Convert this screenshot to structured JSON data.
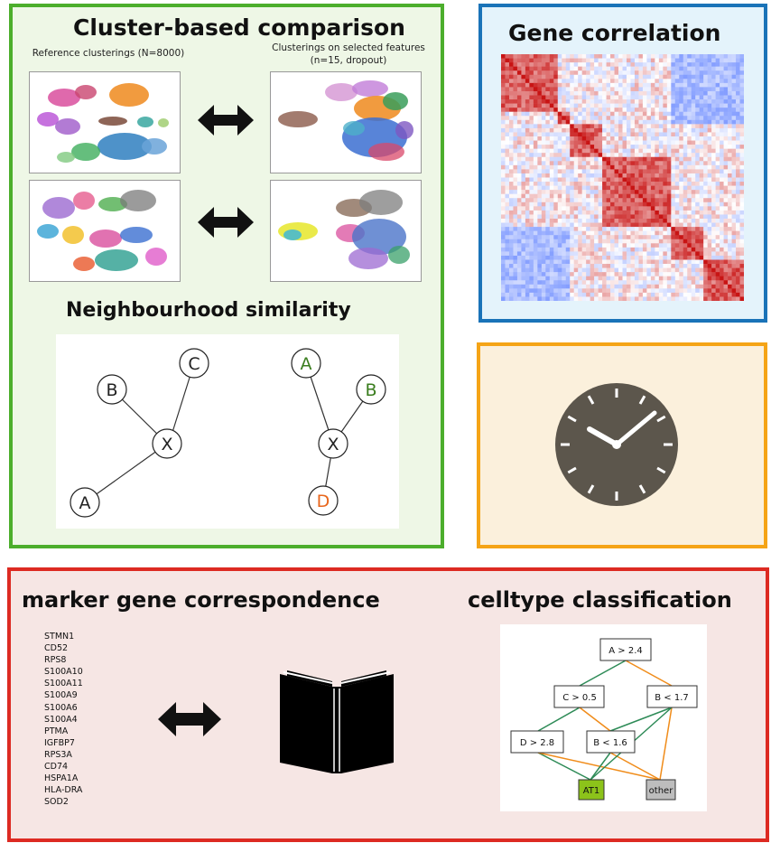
{
  "cluster_panel": {
    "title": "Cluster-based comparison",
    "reference_label": "Reference clusterings (N=8000)",
    "selected_label_line1": "Clusterings on selected features",
    "selected_label_line2": "(n=15, dropout)"
  },
  "neighbourhood": {
    "title": "Neighbourhood similarity",
    "left_graph": {
      "nodes": [
        "B",
        "C",
        "X",
        "A"
      ]
    },
    "right_graph": {
      "nodes": [
        "A",
        "B",
        "X",
        "D"
      ]
    },
    "colors": {
      "edge": "#333333",
      "green": "#3a7d1e",
      "orange": "#e8661c"
    }
  },
  "gene_panel": {
    "title": "Gene correlation",
    "heatmap_colors": [
      "#cc1111",
      "#ffffff",
      "#3355cc"
    ]
  },
  "clock_panel": {
    "icon": "clock-icon",
    "face_color": "#5c564c"
  },
  "marker_panel": {
    "title": "marker gene correspondence",
    "genes": [
      "STMN1",
      "CD52",
      "RPS8",
      "S100A10",
      "S100A11",
      "S100A9",
      "S100A6",
      "S100A4",
      "PTMA",
      "IGFBP7",
      "RPS3A",
      "CD74",
      "HSPA1A",
      "HLA-DRA",
      "SOD2"
    ],
    "book_icon": "open-book-icon"
  },
  "classification": {
    "title": "celltype classification",
    "nodes": {
      "n1": "A > 2.4",
      "n2": "C > 0.5",
      "n3": "B < 1.7",
      "n4": "D > 2.8",
      "n5": "B < 1.6",
      "leaf1": "AT1",
      "leaf2": "other"
    },
    "colors": {
      "green_edge": "#2e8b57",
      "orange_edge": "#f08c1a",
      "at1_fill": "#8cc31a",
      "other_fill": "#bdbdbd"
    }
  }
}
